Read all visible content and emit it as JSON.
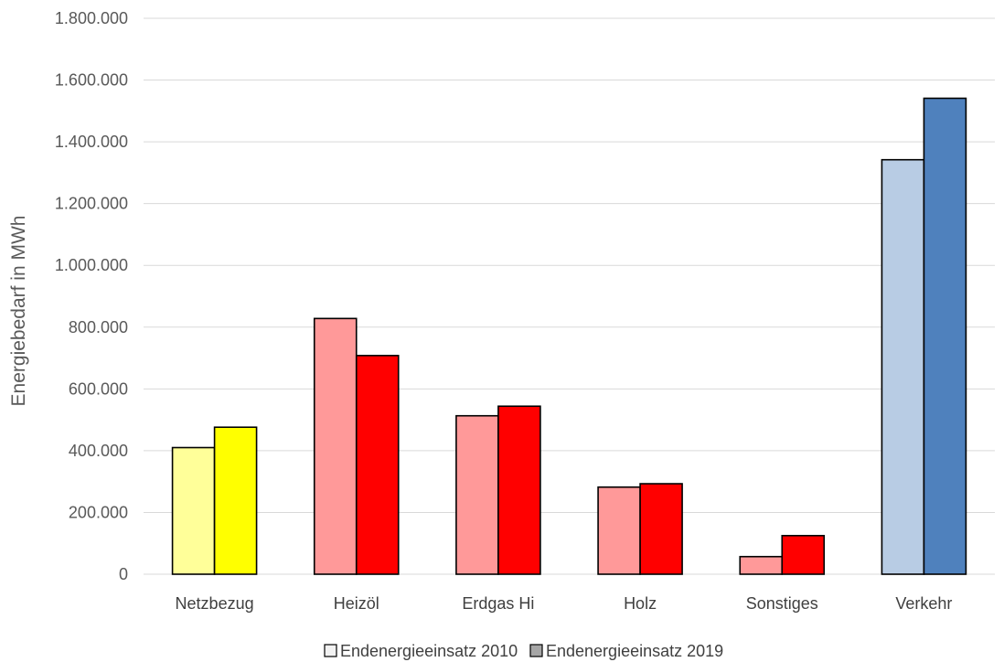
{
  "chart_data": {
    "type": "bar",
    "ylabel": "Energiebedarf in MWh",
    "xlabel": "",
    "ylim": [
      0,
      1800000
    ],
    "ytick_step": 200000,
    "yticks": [
      "0",
      "200.000",
      "400.000",
      "600.000",
      "800.000",
      "1.000.000",
      "1.200.000",
      "1.400.000",
      "1.600.000",
      "1.800.000"
    ],
    "grid": true,
    "legend_position": "bottom",
    "categories": [
      "Netzbezug",
      "Heizöl",
      "Erdgas Hi",
      "Holz",
      "Sonstiges",
      "Verkehr"
    ],
    "series": [
      {
        "name": "Endenergieeinsatz 2010",
        "values": [
          410000,
          828000,
          513000,
          282000,
          57000,
          1342000
        ],
        "colors": [
          "#ffff99",
          "#ff9999",
          "#ff9999",
          "#ff9999",
          "#ff9999",
          "#b8cce4"
        ],
        "legend_color": "#f2f2f2"
      },
      {
        "name": "Endenergieeinsatz 2019",
        "values": [
          476000,
          708000,
          544000,
          293000,
          125000,
          1541000
        ],
        "colors": [
          "#ffff00",
          "#ff0000",
          "#ff0000",
          "#ff0000",
          "#ff0000",
          "#4f81bd"
        ],
        "legend_color": "#a6a6a6"
      }
    ]
  }
}
